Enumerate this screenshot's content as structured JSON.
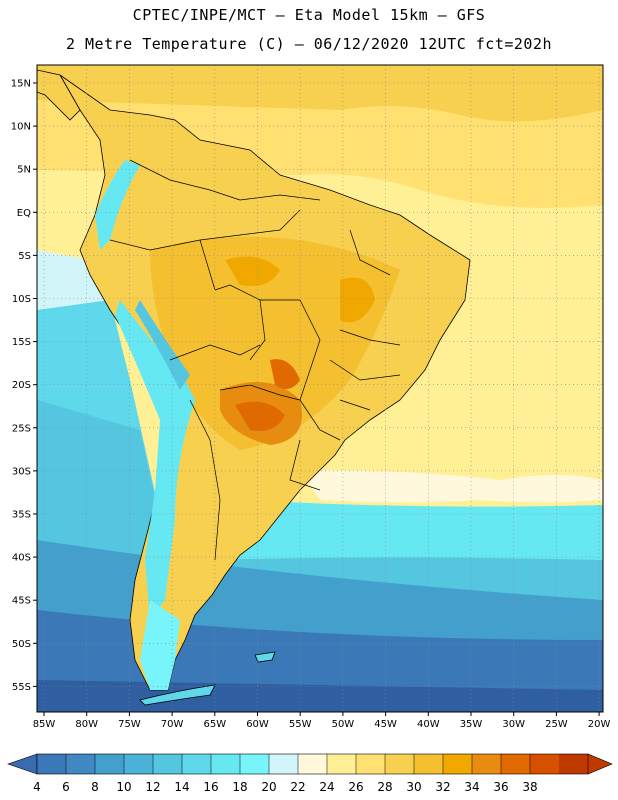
{
  "header": {
    "line1": "CPTEC/INPE/MCT –  Eta Model 15km – GFS",
    "line2": "2 Metre Temperature (C) – 06/12/2020 12UTC fct=202h"
  },
  "map": {
    "lat_labels": [
      "15N",
      "10N",
      "5N",
      "EQ",
      "5S",
      "10S",
      "15S",
      "20S",
      "25S",
      "30S",
      "35S",
      "40S",
      "45S",
      "50S",
      "55S"
    ],
    "lon_labels": [
      "85W",
      "80W",
      "75W",
      "70W",
      "65W",
      "60W",
      "55W",
      "50W",
      "45W",
      "40W",
      "35W",
      "30W",
      "25W",
      "20W"
    ],
    "gridline_style": "dotted"
  },
  "colorbar": {
    "labels": [
      "4",
      "6",
      "8",
      "10",
      "12",
      "14",
      "16",
      "18",
      "20",
      "22",
      "24",
      "26",
      "28",
      "30",
      "32",
      "34",
      "36",
      "38"
    ],
    "colors": [
      "#3a78b8",
      "#3f88c2",
      "#43a0cc",
      "#4cb3d8",
      "#54c6e0",
      "#5ed8ea",
      "#66e8f2",
      "#78f5fa",
      "#d2f5fa",
      "#fff8dc",
      "#fff096",
      "#ffe070",
      "#f8d050",
      "#f4c030",
      "#f0a800",
      "#e88c10",
      "#e06a00",
      "#d65000",
      "#c03a00"
    ],
    "low_arrow_color": "#3a6ab0",
    "high_arrow_color": "#c03a00"
  }
}
